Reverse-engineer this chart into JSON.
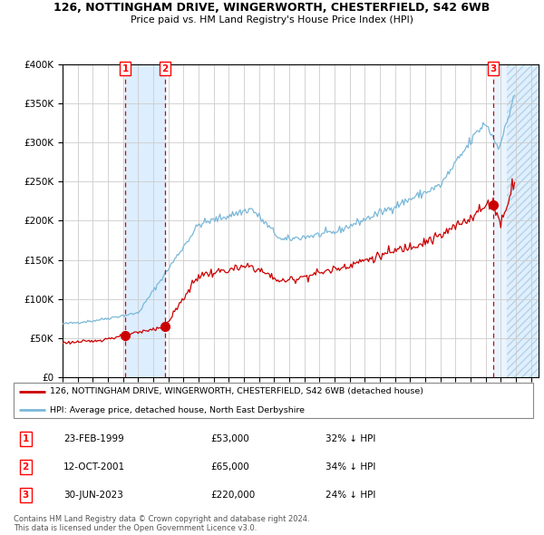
{
  "title_line1": "126, NOTTINGHAM DRIVE, WINGERWORTH, CHESTERFIELD, S42 6WB",
  "title_line2": "Price paid vs. HM Land Registry's House Price Index (HPI)",
  "legend_line1": "126, NOTTINGHAM DRIVE, WINGERWORTH, CHESTERFIELD, S42 6WB (detached house)",
  "legend_line2": "HPI: Average price, detached house, North East Derbyshire",
  "footer_line1": "Contains HM Land Registry data © Crown copyright and database right 2024.",
  "footer_line2": "This data is licensed under the Open Government Licence v3.0.",
  "transactions": [
    {
      "num": 1,
      "date": "23-FEB-1999",
      "price": 53000,
      "hpi_diff": "32% ↓ HPI",
      "x": 1999.14
    },
    {
      "num": 2,
      "date": "12-OCT-2001",
      "price": 65000,
      "hpi_diff": "34% ↓ HPI",
      "x": 2001.78
    },
    {
      "num": 3,
      "date": "30-JUN-2023",
      "price": 220000,
      "hpi_diff": "24% ↓ HPI",
      "x": 2023.5
    }
  ],
  "hpi_color": "#7ab8d9",
  "price_color": "#cc0000",
  "dot_color": "#cc0000",
  "shade_color": "#ddeeff",
  "vline_color": "#cc0000",
  "ylim": [
    0,
    400000
  ],
  "yticks": [
    0,
    50000,
    100000,
    150000,
    200000,
    250000,
    300000,
    350000,
    400000
  ],
  "xlim_start": 1995.0,
  "xlim_end": 2026.5,
  "grid_color": "#cccccc",
  "background_color": "#ffffff",
  "hatch_start": 2024.42,
  "shade2_start": 2023.5
}
